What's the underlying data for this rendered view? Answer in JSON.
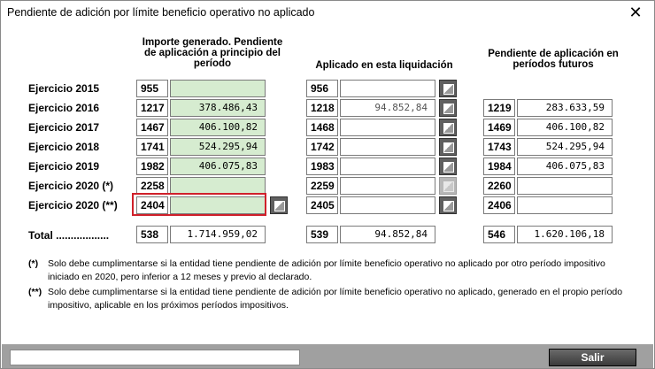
{
  "window": {
    "title": "Pendiente de adición por límite beneficio operativo no aplicado",
    "close_glyph": "✕"
  },
  "headers": {
    "col1": "Importe generado. Pendiente de aplicación a principio del período",
    "col2": "Aplicado en esta liquidación",
    "col3": "Pendiente de aplicación en períodos futuros"
  },
  "rows": [
    {
      "label": "Ejercicio 2015",
      "c1_code": "955",
      "c1_value": "",
      "c2_code": "956",
      "c2_value": "",
      "c3_code": "",
      "c3_value": ""
    },
    {
      "label": "Ejercicio 2016",
      "c1_code": "1217",
      "c1_value": "378.486,43",
      "c2_code": "1218",
      "c2_value": "94.852,84",
      "c3_code": "1219",
      "c3_value": "283.633,59"
    },
    {
      "label": "Ejercicio 2017",
      "c1_code": "1467",
      "c1_value": "406.100,82",
      "c2_code": "1468",
      "c2_value": "",
      "c3_code": "1469",
      "c3_value": "406.100,82"
    },
    {
      "label": "Ejercicio 2018",
      "c1_code": "1741",
      "c1_value": "524.295,94",
      "c2_code": "1742",
      "c2_value": "",
      "c3_code": "1743",
      "c3_value": "524.295,94"
    },
    {
      "label": "Ejercicio 2019",
      "c1_code": "1982",
      "c1_value": "406.075,83",
      "c2_code": "1983",
      "c2_value": "",
      "c3_code": "1984",
      "c3_value": "406.075,83"
    },
    {
      "label": "Ejercicio 2020 (*)",
      "c1_code": "2258",
      "c1_value": "",
      "c2_code": "2259",
      "c2_value": "",
      "c3_code": "2260",
      "c3_value": ""
    },
    {
      "label": "Ejercicio 2020 (**)",
      "c1_code": "2404",
      "c1_value": "",
      "c2_code": "2405",
      "c2_value": "",
      "c3_code": "2406",
      "c3_value": ""
    }
  ],
  "total": {
    "label": "Total ..................",
    "c1_code": "538",
    "c1_value": "1.714.959,02",
    "c2_code": "539",
    "c2_value": "94.852,84",
    "c3_code": "546",
    "c3_value": "1.620.106,18"
  },
  "notes": [
    {
      "mark": "(*)",
      "text": "Solo debe cumplimentarse si la entidad tiene pendiente de adición por límite beneficio operativo no aplicado por otro período impositivo iniciado en 2020, pero inferior a 12 meses y previo al declarado."
    },
    {
      "mark": "(**)",
      "text": "Solo debe cumplimentarse si la entidad tiene pendiente de adición por límite beneficio operativo no aplicado, generado en el propio período impositivo, aplicable en los próximos períodos impositivos."
    }
  ],
  "footer": {
    "salir_label": "Salir"
  },
  "colors": {
    "highlight": "#d0202a",
    "green_field": "#d6ecd0",
    "button_dark": "#3a3a3a"
  }
}
